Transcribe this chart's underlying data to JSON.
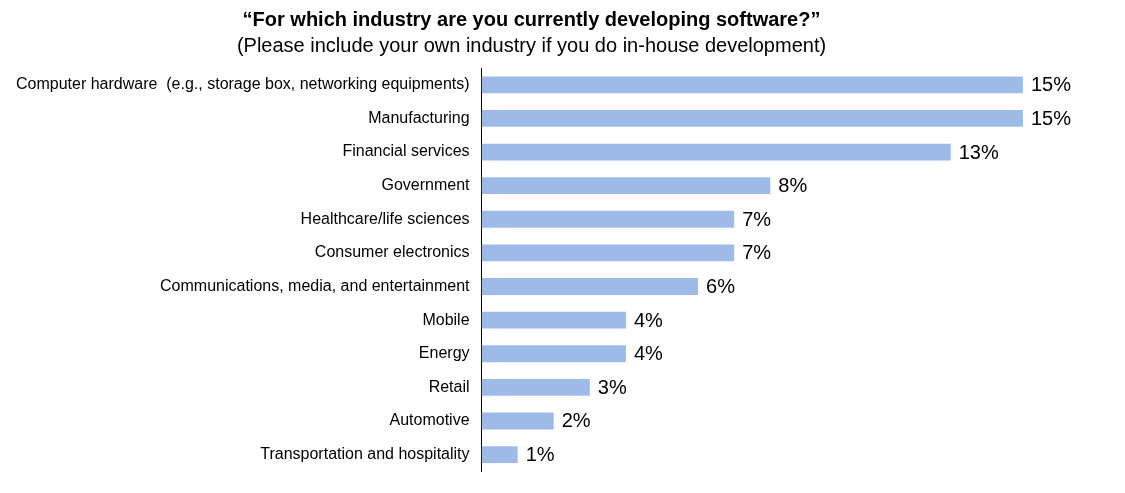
{
  "chart_data": {
    "type": "bar",
    "orientation": "horizontal",
    "title": "“For which industry are you currently developing software?”",
    "subtitle": "(Please include your own industry if you do in-house development)",
    "categories": [
      "Computer hardware  (e.g., storage box, networking equipments)",
      "Manufacturing",
      "Financial services",
      "Government",
      "Healthcare/life sciences",
      "Consumer electronics",
      "Communications, media, and entertainment",
      "Mobile",
      "Energy",
      "Retail",
      "Automotive",
      "Transportation and hospitality"
    ],
    "values": [
      15,
      15,
      13,
      8,
      7,
      7,
      6,
      4,
      4,
      3,
      2,
      1
    ],
    "value_labels": [
      "15%",
      "15%",
      "13%",
      "8%",
      "7%",
      "7%",
      "6%",
      "4%",
      "4%",
      "3%",
      "2%",
      "1%"
    ],
    "color": "#9dbbe6"
  }
}
